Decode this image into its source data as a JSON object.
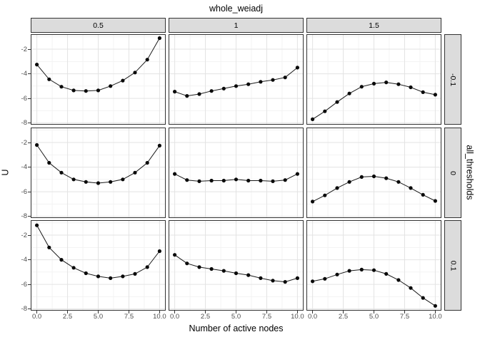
{
  "chart_data": {
    "type": "line",
    "title": "whole_weiadj",
    "xlabel": "Number of active nodes",
    "ylabel": "U",
    "facet_row_title": "all_thresholds",
    "facet_col_labels": [
      "0.5",
      "1",
      "1.5"
    ],
    "facet_row_labels": [
      "-0.1",
      "0",
      "0.1"
    ],
    "x": [
      0,
      1,
      2,
      3,
      4,
      5,
      6,
      7,
      8,
      9,
      10
    ],
    "xlim": [
      -0.5,
      10.5
    ],
    "ylim_bottom": -8.14,
    "ylim_top": -0.78,
    "x_tick_values": [
      0,
      2.5,
      5,
      7.5,
      10
    ],
    "x_tick_labels": [
      "0.0",
      "2.5",
      "5.0",
      "7.5",
      "10.0"
    ],
    "y_tick_values": [
      -2,
      -4,
      -6,
      -8
    ],
    "y_tick_labels": [
      "-2",
      "-4",
      "-6",
      "-8"
    ],
    "x_minor_ticks": [
      1.25,
      3.75,
      6.25,
      8.75
    ],
    "y_minor_ticks": [
      -1,
      -3,
      -5,
      -7
    ],
    "grid": "major+minor",
    "legend": "none",
    "panels": [
      {
        "facet_col": "0.5",
        "facet_row": "-0.1",
        "y": [
          -3.25,
          -4.45,
          -5.05,
          -5.35,
          -5.4,
          -5.35,
          -5.0,
          -4.55,
          -3.9,
          -2.85,
          -1.1
        ]
      },
      {
        "facet_col": "1",
        "facet_row": "-0.1",
        "y": [
          -5.45,
          -5.8,
          -5.65,
          -5.4,
          -5.2,
          -5.0,
          -4.85,
          -4.65,
          -4.5,
          -4.3,
          -3.5
        ]
      },
      {
        "facet_col": "1.5",
        "facet_row": "-0.1",
        "y": [
          -7.7,
          -7.05,
          -6.3,
          -5.6,
          -5.05,
          -4.8,
          -4.7,
          -4.85,
          -5.1,
          -5.5,
          -5.7
        ]
      },
      {
        "facet_col": "0.5",
        "facet_row": "0",
        "y": [
          -2.2,
          -3.65,
          -4.45,
          -5.0,
          -5.2,
          -5.3,
          -5.2,
          -5.0,
          -4.45,
          -3.65,
          -2.25
        ]
      },
      {
        "facet_col": "1",
        "facet_row": "0",
        "y": [
          -4.55,
          -5.05,
          -5.15,
          -5.1,
          -5.1,
          -5.0,
          -5.1,
          -5.1,
          -5.15,
          -5.05,
          -4.55
        ]
      },
      {
        "facet_col": "1.5",
        "facet_row": "0",
        "y": [
          -6.8,
          -6.3,
          -5.7,
          -5.2,
          -4.8,
          -4.75,
          -4.9,
          -5.2,
          -5.7,
          -6.25,
          -6.75
        ]
      },
      {
        "facet_col": "0.5",
        "facet_row": "0.1",
        "y": [
          -1.2,
          -3.0,
          -4.0,
          -4.65,
          -5.1,
          -5.35,
          -5.5,
          -5.35,
          -5.15,
          -4.6,
          -3.3
        ]
      },
      {
        "facet_col": "1",
        "facet_row": "0.1",
        "y": [
          -3.6,
          -4.3,
          -4.6,
          -4.75,
          -4.9,
          -5.1,
          -5.25,
          -5.5,
          -5.7,
          -5.8,
          -5.5
        ]
      },
      {
        "facet_col": "1.5",
        "facet_row": "0.1",
        "y": [
          -5.75,
          -5.55,
          -5.2,
          -4.9,
          -4.8,
          -4.85,
          -5.15,
          -5.65,
          -6.3,
          -7.1,
          -7.75
        ]
      }
    ],
    "colors": {
      "point": "#0a0a0a",
      "line": "#1a1a1a",
      "strip_bg": "#dcdcdc",
      "panel_border": "#333333",
      "grid_major": "#e3e3e3",
      "grid_minor": "#f1f1f1",
      "tick_label": "#4d4d4d",
      "tick_mark": "#333333"
    }
  }
}
